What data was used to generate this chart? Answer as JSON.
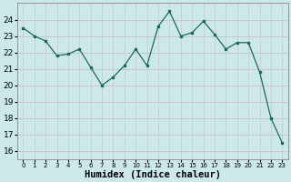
{
  "x": [
    0,
    1,
    2,
    3,
    4,
    5,
    6,
    7,
    8,
    9,
    10,
    11,
    12,
    13,
    14,
    15,
    16,
    17,
    18,
    19,
    20,
    21,
    22,
    23
  ],
  "y": [
    23.5,
    23.0,
    22.7,
    21.8,
    21.9,
    22.2,
    21.1,
    20.0,
    20.5,
    21.2,
    22.2,
    21.2,
    23.6,
    24.5,
    23.0,
    23.2,
    23.9,
    23.1,
    22.2,
    22.6,
    22.6,
    20.8,
    18.0,
    16.5
  ],
  "line_color": "#1a6b5a",
  "marker": "s",
  "marker_size": 2,
  "bg_color": "#cce8e8",
  "grid_color_h": "#c8b8b8",
  "grid_color_v": "#c8c8c8",
  "xlabel": "Humidex (Indice chaleur)",
  "ylim": [
    15.5,
    25.0
  ],
  "xlim": [
    -0.5,
    23.5
  ],
  "yticks": [
    16,
    17,
    18,
    19,
    20,
    21,
    22,
    23,
    24
  ],
  "xticks": [
    0,
    1,
    2,
    3,
    4,
    5,
    6,
    7,
    8,
    9,
    10,
    11,
    12,
    13,
    14,
    15,
    16,
    17,
    18,
    19,
    20,
    21,
    22,
    23
  ],
  "label_fontsize": 7.5,
  "tick_fontsize": 6.5,
  "xtick_fontsize": 5.0
}
